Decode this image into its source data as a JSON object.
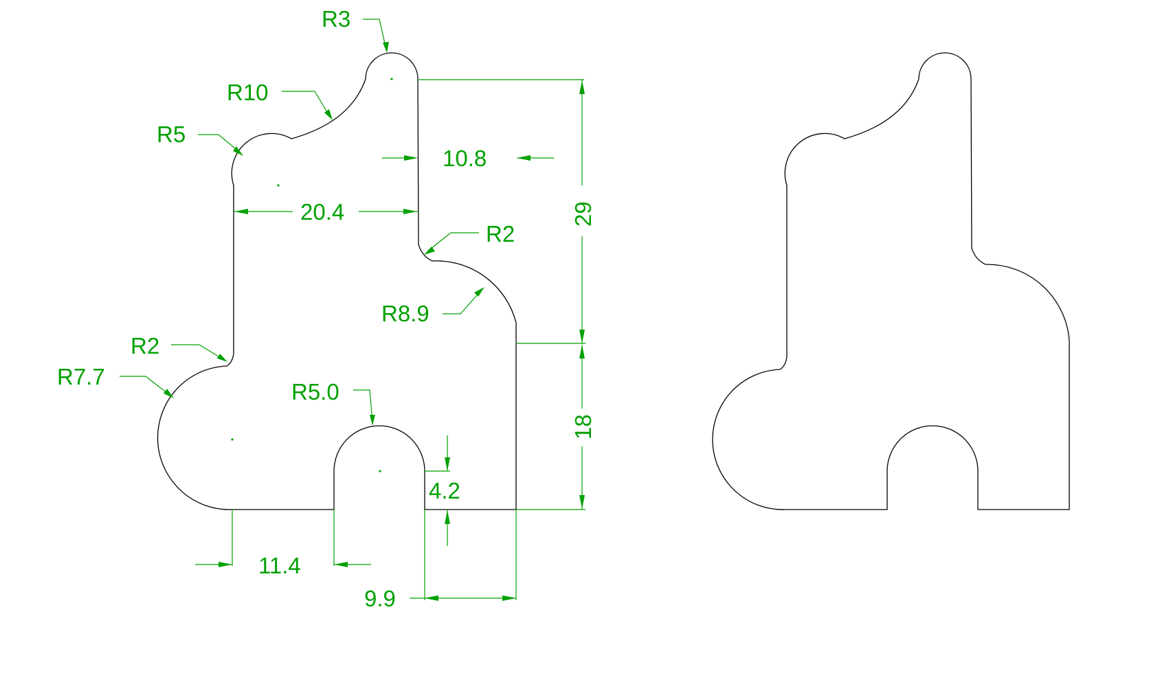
{
  "colors": {
    "dimension": "#00a000",
    "outline": "#000000",
    "background": "#ffffff"
  },
  "labels": {
    "r3": "R3",
    "r10": "R10",
    "r5": "R5",
    "r2_top": "R2",
    "r8_9": "R8.9",
    "r2_left": "R2",
    "r7_7": "R7.7",
    "r5_0": "R5.0",
    "d10_8": "10.8",
    "d20_4": "20.4",
    "d29": "29",
    "d18": "18",
    "d4_2": "4.2",
    "d11_4": "11.4",
    "d9_9": "9.9"
  }
}
